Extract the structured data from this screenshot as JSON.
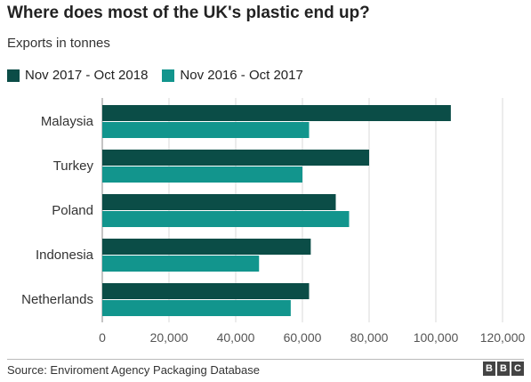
{
  "header": {
    "title": "Where does most of the UK's plastic end up?",
    "subtitle": "Exports in tonnes"
  },
  "footer": {
    "source": "Source: Enviroment Agency Packaging Database",
    "logo_letters": [
      "B",
      "B",
      "C"
    ]
  },
  "colors": {
    "series_2018": "#0b4d47",
    "series_2017": "#12958d",
    "grid": "#d9d9d9"
  },
  "chart_data": {
    "type": "bar",
    "orientation": "horizontal",
    "title": "Where does most of the UK's plastic end up?",
    "subtitle": "Exports in tonnes",
    "categories": [
      "Malaysia",
      "Turkey",
      "Poland",
      "Indonesia",
      "Netherlands"
    ],
    "series": [
      {
        "name": "Nov 2017 - Oct 2018",
        "values": [
          104500,
          80000,
          70000,
          62500,
          62000
        ]
      },
      {
        "name": "Nov 2016 - Oct 2017",
        "values": [
          62000,
          60000,
          74000,
          47000,
          56500
        ]
      }
    ],
    "xlim": [
      0,
      120000
    ],
    "xticks": [
      0,
      20000,
      40000,
      60000,
      80000,
      100000,
      120000
    ],
    "xtick_labels": [
      "0",
      "20,000",
      "40,000",
      "60,000",
      "80,000",
      "100,000",
      "120,000"
    ],
    "grid": true,
    "legend_position": "top-left"
  }
}
